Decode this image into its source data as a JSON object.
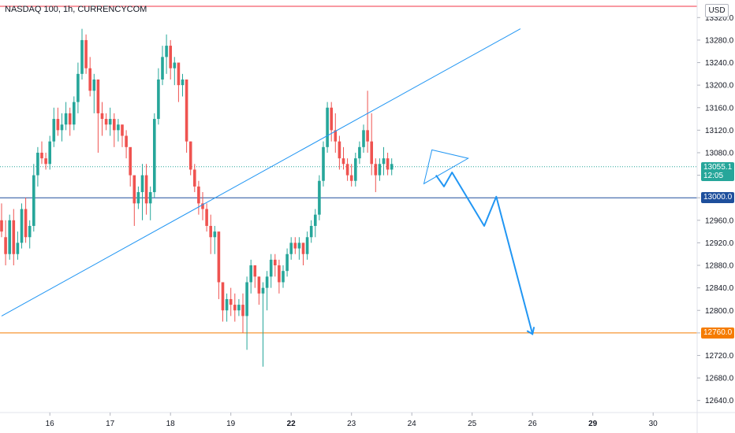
{
  "header": {
    "title": "NASDAQ 100, 1h, CURRENCYCOM",
    "currency": "USD"
  },
  "price_tags": {
    "current_price": "13055.1",
    "countdown": "12:05",
    "support_level": "13000.0",
    "target_level": "12760.0"
  },
  "colors": {
    "up": "#26a69a",
    "down": "#ef5350",
    "support_line": "#1e4f9c",
    "target_line": "#f57c00",
    "resistance_line": "#f23645",
    "drawing": "#2196f3"
  },
  "chart_data": {
    "type": "candlestick",
    "title": "NASDAQ 100, 1h, CURRENCYCOM",
    "ylim": [
      12620,
      13340
    ],
    "y_ticks": [
      13320,
      13280,
      13240,
      13200,
      13160,
      13120,
      13080,
      13040,
      13000,
      12960,
      12920,
      12880,
      12840,
      12800,
      12760,
      12720,
      12680,
      12640
    ],
    "y_tick_labels": [
      "13320.0",
      "13280.0",
      "13240.0",
      "13200.0",
      "13160.0",
      "13120.0",
      "13080.0",
      "13040.0",
      "13000.0",
      "12960.0",
      "12920.0",
      "12880.0",
      "12840.0",
      "12800.0",
      "12760.0",
      "12720.0",
      "12680.0",
      "12640.0"
    ],
    "x_date_labels": [
      {
        "label": "16",
        "bar": 8,
        "bold": false
      },
      {
        "label": "17",
        "bar": 23,
        "bold": false
      },
      {
        "label": "18",
        "bar": 38,
        "bold": false
      },
      {
        "label": "19",
        "bar": 53,
        "bold": false
      },
      {
        "label": "22",
        "bar": 68,
        "bold": true
      },
      {
        "label": "23",
        "bar": 83,
        "bold": false
      },
      {
        "label": "24",
        "bar": 98,
        "bold": false
      },
      {
        "label": "25",
        "bar": 113,
        "bold": false
      },
      {
        "label": "26",
        "bar": 128,
        "bold": false
      },
      {
        "label": "29",
        "bar": 143,
        "bold": true
      },
      {
        "label": "30",
        "bar": 158,
        "bold": false
      }
    ],
    "bars_per_day": 15,
    "first_bar_offset": -4,
    "horizontal_levels": [
      {
        "name": "resistance",
        "value": 13340
      },
      {
        "name": "support",
        "value": 13000
      },
      {
        "name": "target",
        "value": 12760
      }
    ],
    "current_price": 13055.1,
    "candles": [
      [
        12960,
        12990,
        12940,
        12930
      ],
      [
        12930,
        12960,
        12900,
        12880
      ],
      [
        12900,
        12970,
        12960,
        12890
      ],
      [
        12960,
        12980,
        12900,
        12880
      ],
      [
        12900,
        12940,
        12920,
        12890
      ],
      [
        12920,
        12990,
        12980,
        12910
      ],
      [
        12980,
        13000,
        12930,
        12920
      ],
      [
        12930,
        12960,
        12950,
        12910
      ],
      [
        12950,
        13060,
        13040,
        12940
      ],
      [
        13040,
        13090,
        13080,
        13020
      ],
      [
        13080,
        13100,
        13070,
        13060
      ],
      [
        13070,
        13080,
        13060,
        13050
      ],
      [
        13060,
        13110,
        13100,
        13050
      ],
      [
        13100,
        13160,
        13140,
        13090
      ],
      [
        13140,
        13160,
        13120,
        13110
      ],
      [
        13120,
        13150,
        13130,
        13100
      ],
      [
        13130,
        13170,
        13150,
        13120
      ],
      [
        13150,
        13160,
        13130,
        13110
      ],
      [
        13130,
        13180,
        13170,
        13120
      ],
      [
        13170,
        13240,
        13220,
        13150
      ],
      [
        13220,
        13300,
        13280,
        13210
      ],
      [
        13280,
        13290,
        13230,
        13220
      ],
      [
        13230,
        13250,
        13190,
        13180
      ],
      [
        13190,
        13220,
        13210,
        13150
      ],
      [
        13210,
        13180,
        13150,
        13080
      ],
      [
        13150,
        13170,
        13140,
        13110
      ],
      [
        13140,
        13150,
        13130,
        13120
      ],
      [
        13130,
        13160,
        13140,
        13110
      ],
      [
        13140,
        13150,
        13120,
        13090
      ],
      [
        13120,
        13140,
        13130,
        13100
      ],
      [
        13130,
        13130,
        13110,
        13090
      ],
      [
        13110,
        13120,
        13090,
        13070
      ],
      [
        13090,
        13080,
        13040,
        13020
      ],
      [
        13040,
        13030,
        12990,
        12950
      ],
      [
        12990,
        13020,
        13010,
        12980
      ],
      [
        13010,
        13060,
        13040,
        12960
      ],
      [
        13040,
        13060,
        12990,
        12970
      ],
      [
        12990,
        13020,
        13010,
        12960
      ],
      [
        13010,
        13150,
        13140,
        13000
      ],
      [
        13140,
        13230,
        13210,
        13130
      ],
      [
        13210,
        13270,
        13250,
        13200
      ],
      [
        13250,
        13290,
        13270,
        13220
      ],
      [
        13270,
        13280,
        13230,
        13210
      ],
      [
        13230,
        13250,
        13240,
        13200
      ],
      [
        13240,
        13230,
        13200,
        13170
      ],
      [
        13200,
        13220,
        13210,
        13180
      ],
      [
        13210,
        13190,
        13100,
        13080
      ],
      [
        13100,
        13100,
        13050,
        13040
      ],
      [
        13050,
        13060,
        13020,
        13010
      ],
      [
        13020,
        13030,
        12990,
        12970
      ],
      [
        12990,
        13010,
        12980,
        12960
      ],
      [
        12980,
        12990,
        12950,
        12940
      ],
      [
        12950,
        12970,
        12930,
        12900
      ],
      [
        12930,
        12950,
        12940,
        12900
      ],
      [
        12940,
        12920,
        12850,
        12820
      ],
      [
        12850,
        12850,
        12800,
        12780
      ],
      [
        12800,
        12830,
        12820,
        12780
      ],
      [
        12820,
        12840,
        12810,
        12790
      ],
      [
        12810,
        12830,
        12800,
        12780
      ],
      [
        12800,
        12820,
        12810,
        12790
      ],
      [
        12810,
        12830,
        12790,
        12760
      ],
      [
        12790,
        12860,
        12850,
        12730
      ],
      [
        12850,
        12890,
        12880,
        12830
      ],
      [
        12880,
        12880,
        12860,
        12840
      ],
      [
        12860,
        12860,
        12830,
        12810
      ],
      [
        12830,
        12850,
        12840,
        12700
      ],
      [
        12840,
        12870,
        12860,
        12800
      ],
      [
        12860,
        12900,
        12890,
        12840
      ],
      [
        12890,
        12900,
        12880,
        12860
      ],
      [
        12880,
        12890,
        12850,
        12830
      ],
      [
        12850,
        12880,
        12870,
        12840
      ],
      [
        12870,
        12910,
        12900,
        12860
      ],
      [
        12900,
        12930,
        12920,
        12890
      ],
      [
        12920,
        12930,
        12910,
        12900
      ],
      [
        12910,
        12930,
        12920,
        12890
      ],
      [
        12920,
        12920,
        12900,
        12880
      ],
      [
        12900,
        12940,
        12930,
        12890
      ],
      [
        12930,
        12960,
        12950,
        12920
      ],
      [
        12950,
        12980,
        12970,
        12930
      ],
      [
        12970,
        13040,
        13030,
        12960
      ],
      [
        13030,
        13100,
        13090,
        13020
      ],
      [
        13090,
        13170,
        13160,
        13080
      ],
      [
        13160,
        13170,
        13120,
        13100
      ],
      [
        13120,
        13150,
        13100,
        13080
      ],
      [
        13100,
        13110,
        13070,
        13050
      ],
      [
        13070,
        13090,
        13060,
        13050
      ],
      [
        13060,
        13070,
        13040,
        13030
      ],
      [
        13040,
        13060,
        13030,
        13020
      ],
      [
        13030,
        13080,
        13070,
        13020
      ],
      [
        13070,
        13100,
        13090,
        13060
      ],
      [
        13090,
        13130,
        13120,
        13080
      ],
      [
        13120,
        13190,
        13100,
        13080
      ],
      [
        13100,
        13150,
        13060,
        13040
      ],
      [
        13060,
        13070,
        13040,
        13010
      ],
      [
        13040,
        13070,
        13060,
        13030
      ],
      [
        13060,
        13090,
        13070,
        13040
      ],
      [
        13070,
        13080,
        13050,
        13040
      ],
      [
        13050,
        13070,
        13060,
        13040
      ]
    ],
    "drawings": {
      "trend_line": {
        "from": {
          "bar": -4,
          "price": 12790
        },
        "to": {
          "bar": 125,
          "price": 13300
        }
      },
      "triangle": [
        {
          "bar": 103,
          "price": 13085
        },
        {
          "bar": 112,
          "price": 13070
        },
        {
          "bar": 101,
          "price": 13025
        }
      ],
      "projection": [
        {
          "bar": 104,
          "price": 13040
        },
        {
          "bar": 106,
          "price": 13020
        },
        {
          "bar": 108,
          "price": 13045
        },
        {
          "bar": 116,
          "price": 12950
        },
        {
          "bar": 119,
          "price": 13002
        },
        {
          "bar": 128,
          "price": 12758
        }
      ]
    }
  }
}
